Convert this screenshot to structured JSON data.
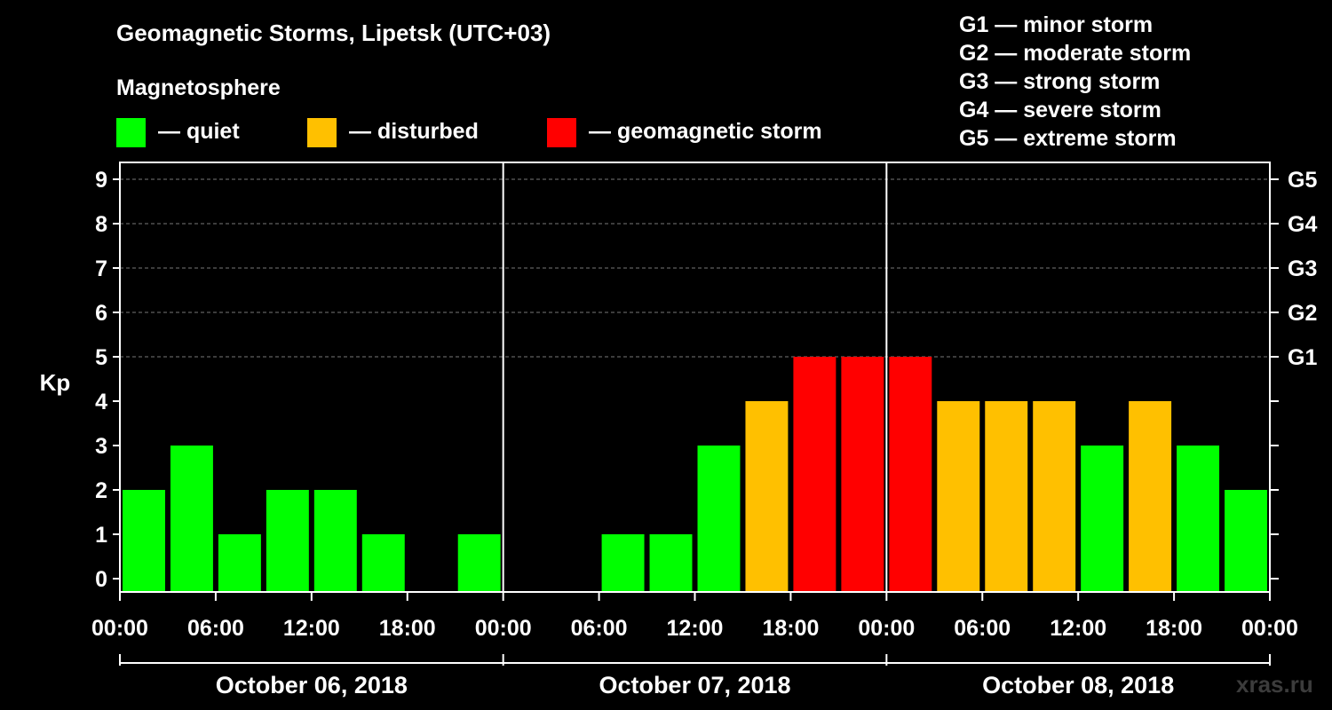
{
  "header": {
    "title": "Geomagnetic Storms, Lipetsk (UTC+03)",
    "subtitle": "Magnetosphere"
  },
  "legend": [
    {
      "label": "— quiet",
      "color": "#00ff00"
    },
    {
      "label": "— disturbed",
      "color": "#ffc000"
    },
    {
      "label": "— geomagnetic storm",
      "color": "#ff0000"
    }
  ],
  "storm_scale": [
    "G1 — minor storm",
    "G2 — moderate storm",
    "G3 — strong storm",
    "G4 — severe storm",
    "G5 — extreme storm"
  ],
  "watermark": "xras.ru",
  "chart_data": {
    "type": "bar",
    "ylabel": "Kp",
    "ylim": [
      0,
      9
    ],
    "yticks": [
      "0",
      "1",
      "2",
      "3",
      "4",
      "5",
      "6",
      "7",
      "8",
      "9"
    ],
    "right_ticks": [
      {
        "value": 5,
        "label": "G1"
      },
      {
        "value": 6,
        "label": "G2"
      },
      {
        "value": 7,
        "label": "G3"
      },
      {
        "value": 8,
        "label": "G4"
      },
      {
        "value": 9,
        "label": "G5"
      }
    ],
    "xtick_labels": [
      "00:00",
      "06:00",
      "12:00",
      "18:00",
      "00:00",
      "06:00",
      "12:00",
      "18:00",
      "00:00",
      "06:00",
      "12:00",
      "18:00",
      "00:00"
    ],
    "days": [
      "October 06, 2018",
      "October 07, 2018",
      "October 08, 2018"
    ],
    "bin_hours": 3,
    "values": [
      2,
      3,
      1,
      2,
      2,
      1,
      0,
      1,
      0,
      0,
      1,
      1,
      3,
      4,
      5,
      5,
      5,
      4,
      4,
      4,
      3,
      4,
      3,
      2
    ],
    "colors": {
      "quiet": "#00ff00",
      "disturbed": "#ffc000",
      "storm": "#ff0000"
    },
    "grid": "dashed at Kp 5-9"
  }
}
